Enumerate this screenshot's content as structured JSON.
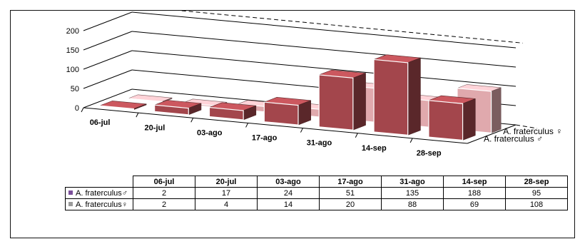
{
  "chart_data": {
    "type": "bar",
    "categories": [
      "06-jul",
      "20-jul",
      "03-ago",
      "17-ago",
      "31-ago",
      "14-sep",
      "28-sep"
    ],
    "series": [
      {
        "name": "A. fraterculus ♂",
        "values": [
          2,
          17,
          24,
          51,
          135,
          188,
          95
        ],
        "color": "#a3464c"
      },
      {
        "name": "A. fraterculus ♀",
        "values": [
          2,
          4,
          14,
          20,
          88,
          69,
          108
        ],
        "color": "#e0a9ad"
      }
    ],
    "yticks": [
      0,
      50,
      100,
      150,
      200
    ],
    "ylim": [
      0,
      200
    ],
    "title": "",
    "xlabel": "",
    "ylabel": "",
    "legend": "right-of-depth-axis",
    "grid": true
  },
  "table": {
    "headers": [
      "06-jul",
      "20-jul",
      "03-ago",
      "17-ago",
      "31-ago",
      "14-sep",
      "28-sep"
    ],
    "rows": [
      {
        "label": "A. fraterculus♂",
        "color": "#7b4f9a",
        "values": [
          "2",
          "17",
          "24",
          "51",
          "135",
          "188",
          "95"
        ]
      },
      {
        "label": "A. fraterculus♀",
        "color": "#9a9a9a",
        "values": [
          "2",
          "4",
          "14",
          "20",
          "88",
          "69",
          "108"
        ]
      }
    ]
  }
}
